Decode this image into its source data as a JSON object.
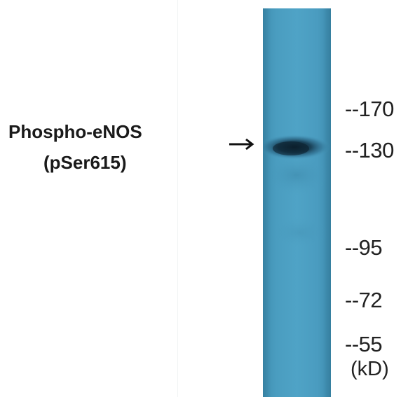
{
  "blot": {
    "protein_label_line1": "Phospho-eNOS",
    "protein_label_line2": "(pSer615)",
    "lane_color": "#4a9dc0",
    "band_color": "#0f2a3a",
    "markers": [
      {
        "label": "--170",
        "kd": 170
      },
      {
        "label": "--130",
        "kd": 130
      },
      {
        "label": "--95",
        "kd": 95
      },
      {
        "label": "--72",
        "kd": 72
      },
      {
        "label": "--55",
        "kd": 55
      }
    ],
    "unit_label": "(kD)",
    "arrow_icon": "right-arrow-icon"
  }
}
